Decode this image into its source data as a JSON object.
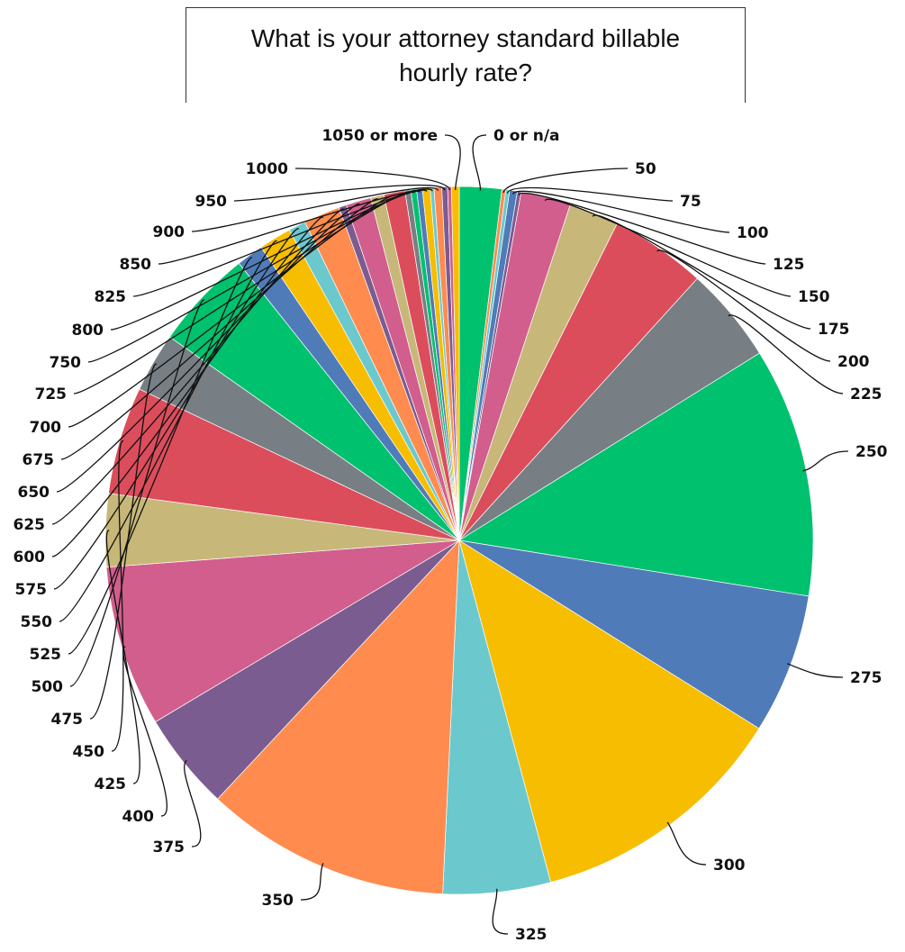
{
  "chart_data": {
    "type": "pie",
    "title": "What is your attorney standard billable hourly rate?",
    "categories": [
      "0 or n/a",
      "50",
      "75",
      "100",
      "125",
      "150",
      "175",
      "200",
      "225",
      "250",
      "275",
      "300",
      "325",
      "350",
      "375",
      "400",
      "425",
      "450",
      "475",
      "500",
      "525",
      "550",
      "575",
      "600",
      "625",
      "650",
      "675",
      "700",
      "725",
      "750",
      "800",
      "825",
      "850",
      "900",
      "950",
      "1000",
      "1050 or more"
    ],
    "values": [
      2.2,
      0.2,
      0.2,
      0.4,
      0.2,
      2.6,
      2.6,
      5.0,
      5.0,
      13.0,
      7.3,
      13.6,
      5.6,
      12.8,
      5.1,
      8.4,
      3.8,
      5.6,
      3.1,
      5.2,
      1.4,
      1.7,
      0.9,
      1.9,
      0.4,
      1.3,
      0.7,
      1.1,
      0.3,
      0.3,
      0.3,
      0.4,
      0.2,
      0.4,
      0.3,
      0.2,
      0.4
    ],
    "colors": [
      "#00c16e",
      "#ff8b4f",
      "#6bc8cd",
      "#4f7cb8",
      "#7b5c90",
      "#d25e8d",
      "#c7b879",
      "#dc4d5c",
      "#787f84",
      "#00c16e",
      "#4f7cb8",
      "#f7bd00",
      "#6bc8cd",
      "#ff8b4f",
      "#7b5c90",
      "#d25e8d",
      "#c7b879",
      "#dc4d5c",
      "#787f84",
      "#00c16e",
      "#4f7cb8",
      "#f7bd00",
      "#6bc8cd",
      "#ff8b4f",
      "#7b5c90",
      "#d25e8d",
      "#c7b879",
      "#dc4d5c",
      "#787f84",
      "#00c16e",
      "#4f7cb8",
      "#f7bd00",
      "#6bc8cd",
      "#ff8b4f",
      "#7b5c90",
      "#d25e8d",
      "#f7bd00"
    ],
    "legend": "none"
  }
}
